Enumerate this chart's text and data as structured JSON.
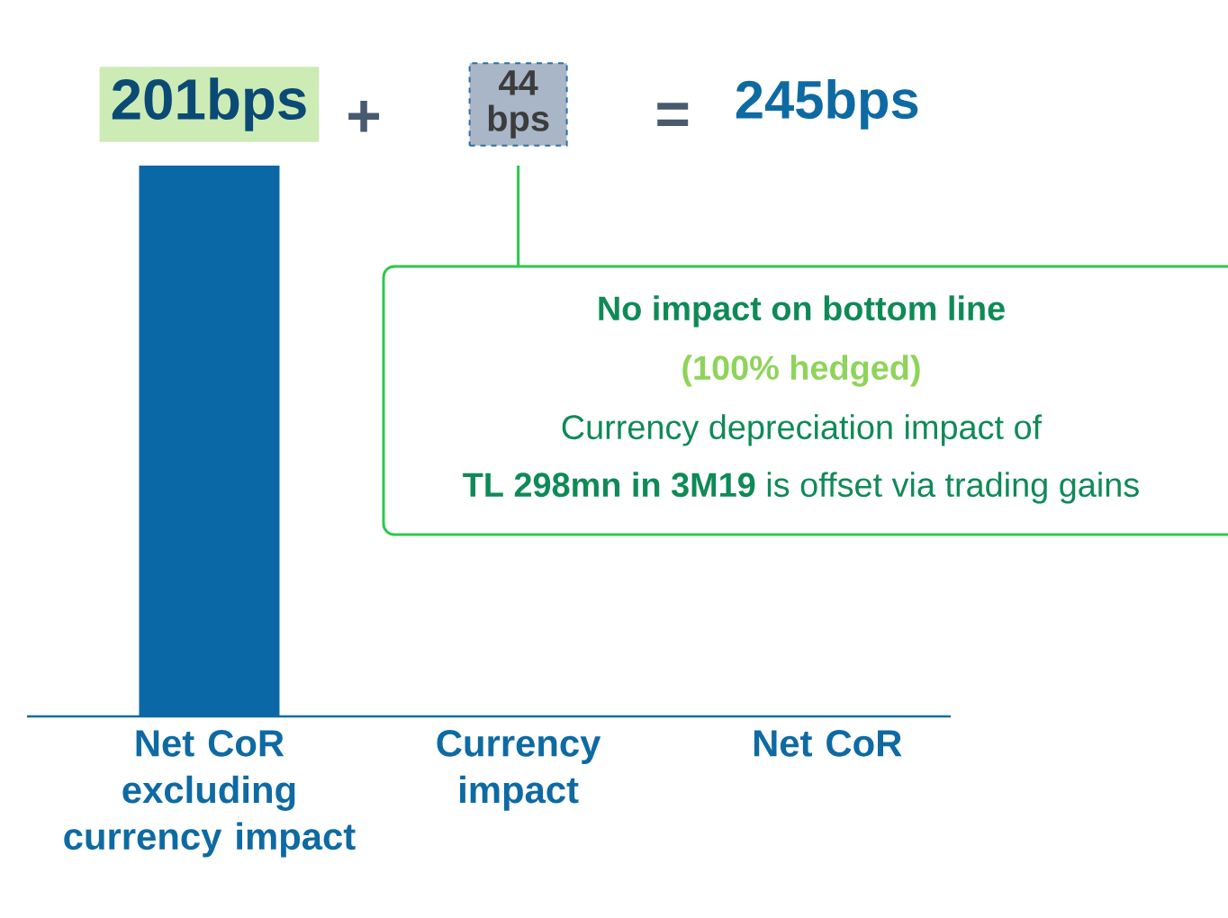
{
  "chart_data": {
    "type": "bar",
    "categories": [
      "Net CoR excluding currency impact",
      "Currency impact",
      "Net CoR"
    ],
    "values": [
      201,
      null,
      null
    ],
    "value_labels": [
      "201bps",
      "44 bps",
      "245bps"
    ],
    "color": "#0a68a6",
    "annotations": [
      "+",
      "=",
      "No impact on bottom line",
      "(100% hedged)",
      "Currency depreciation impact of",
      "**TL 298mn in 3M19** is offset via trading gains"
    ]
  }
}
